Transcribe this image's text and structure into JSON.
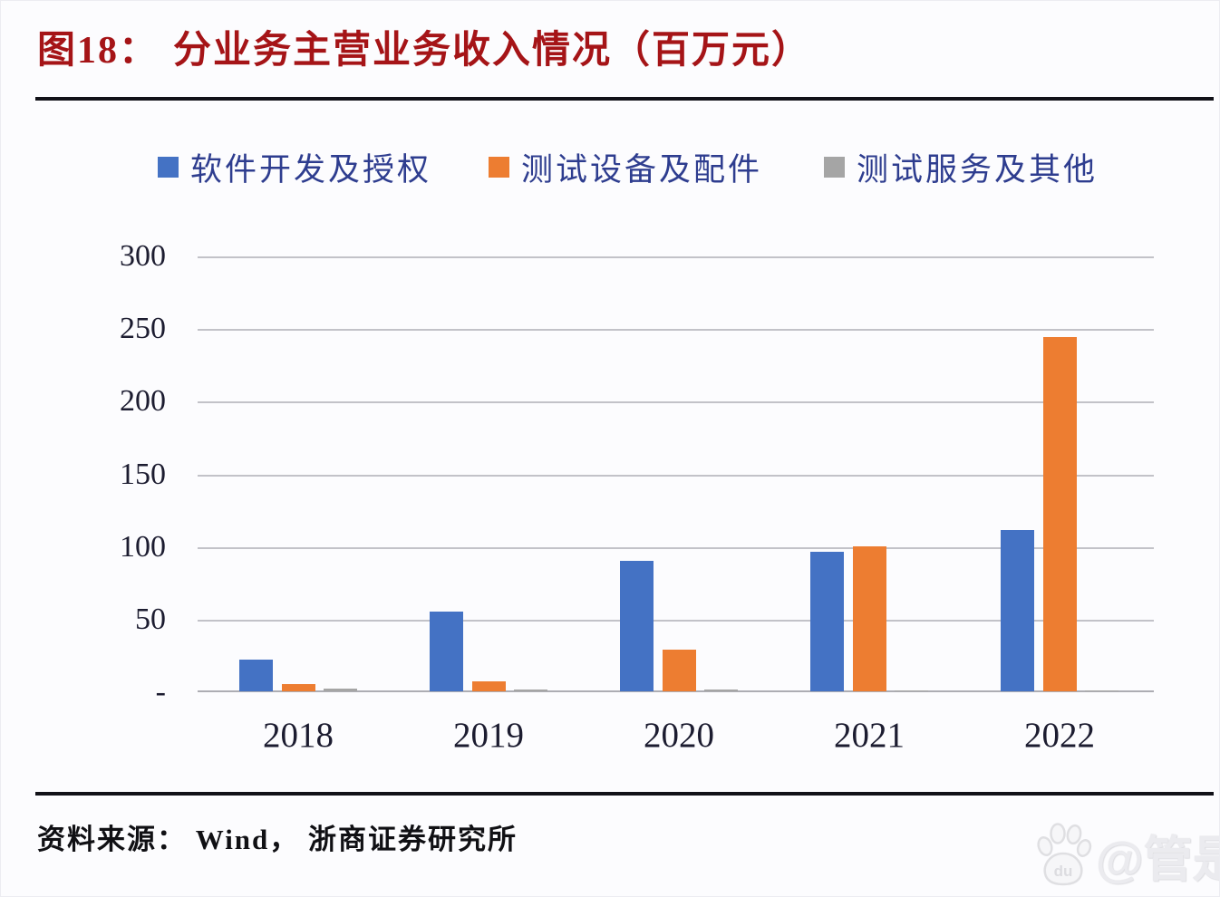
{
  "figure": {
    "label": "图18：",
    "title": "分业务主营业务收入情况（百万元）"
  },
  "source_line": "资料来源： Wind， 浙商证券研究所",
  "watermark": {
    "icon": "baidu-paw-icon",
    "icon_label": "du",
    "text": "@管是"
  },
  "colors": {
    "background": "#fcfcfe",
    "title_red": "#a51417",
    "legend_text": "#2e3d8f",
    "axis_text": "#1c1c30",
    "rule_black": "#111118",
    "gridline_gray": "#c2c2c8",
    "baseline_gray": "#adadb3",
    "series_blue": "#4472c4",
    "series_orange": "#ed7d31",
    "series_gray": "#a5a5a5"
  },
  "chart_data": {
    "type": "bar",
    "title": "分业务主营业务收入情况（百万元）",
    "unit": "百万元",
    "categories": [
      "2018",
      "2019",
      "2020",
      "2021",
      "2022"
    ],
    "series": [
      {
        "name": "软件开发及授权",
        "color": "#4472c4",
        "values": [
          22,
          55,
          90,
          96,
          111
        ]
      },
      {
        "name": "测试设备及配件",
        "color": "#ed7d31",
        "values": [
          5,
          7,
          29,
          100,
          244
        ]
      },
      {
        "name": "测试服务及其他",
        "color": "#a5a5a5",
        "values": [
          2,
          1.5,
          1,
          0.5,
          0.5
        ]
      }
    ],
    "ylim": [
      0,
      300
    ],
    "yticks": [
      {
        "value": 0,
        "label": "-"
      },
      {
        "value": 50,
        "label": "50"
      },
      {
        "value": 100,
        "label": "100"
      },
      {
        "value": 150,
        "label": "150"
      },
      {
        "value": 200,
        "label": "200"
      },
      {
        "value": 250,
        "label": "250"
      },
      {
        "value": 300,
        "label": "300"
      }
    ],
    "grid": true,
    "legend_position": "top"
  }
}
